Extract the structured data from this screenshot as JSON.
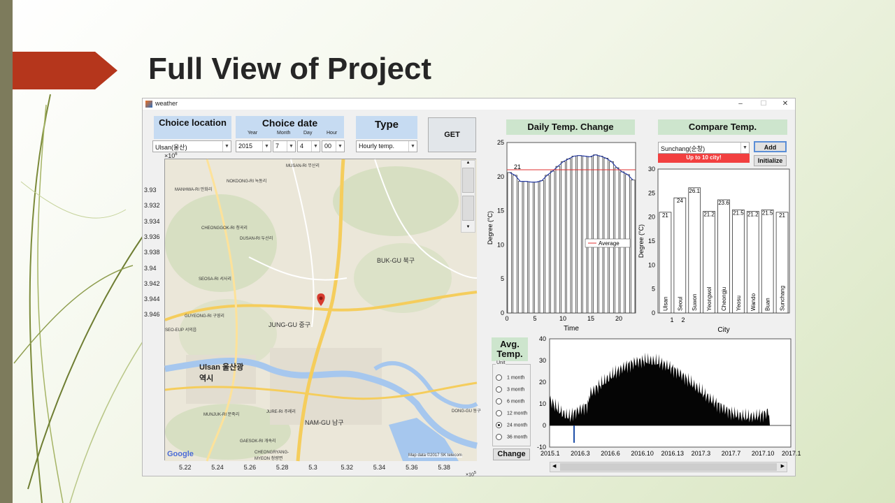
{
  "slide": {
    "title": "Full View of Project"
  },
  "window": {
    "title": "weather",
    "min_icon": "minimize-icon",
    "max_icon": "maximize-icon",
    "close_icon": "close-icon"
  },
  "location": {
    "header": "Choice location",
    "value": "Ulsan(울산)"
  },
  "date": {
    "header": "Choice date",
    "year_label": "Year",
    "month_label": "Month",
    "day_label": "Day",
    "hour_label": "Hour",
    "year": "2015",
    "month": "7",
    "day": "4",
    "hour": "00"
  },
  "type": {
    "header": "Type",
    "value": "Hourly temp."
  },
  "get_button": "GET",
  "map": {
    "exp_label": "×10",
    "exp_sup": "6",
    "y_ticks": [
      "3.93",
      "3.932",
      "3.934",
      "3.936",
      "3.938",
      "3.94",
      "3.942",
      "3.944",
      "3.946"
    ],
    "x_ticks": [
      "5.22",
      "5.24",
      "5.26",
      "5.28",
      "5.3",
      "5.32",
      "5.34",
      "5.36",
      "5.38"
    ],
    "x_exp": "×10",
    "x_exp_sup": "5",
    "labels": [
      "MUSAN-RI 무산리",
      "NOKDONG-RI 녹동리",
      "MANHWA-RI 만화리",
      "CHEONGGOK-RI 청곡리",
      "DUSAN-RI 두산리",
      "BUK-GU 북구",
      "SEOSA-RI 서사리",
      "GUYEONG-RI 구영리",
      "JUNG-GU 중구",
      "Ulsan 울산광역시",
      "SEO-EUP 서의읍",
      "MUNJUK-RI 문죽리",
      "GAESOK-RI 개속리",
      "NAM-GU 남구",
      "DONG-GU 동구",
      "JURE-RI 주례리",
      "CHEONGRYANG-MYEON 청량면"
    ],
    "google": "Google",
    "attribution": "Map data ©2017 SK telecom"
  },
  "daily": {
    "header": "Daily Temp. Change",
    "xlabel": "Time",
    "ylabel": "Degree (°C)",
    "legend": "Average",
    "avg_label": "21"
  },
  "compare": {
    "header": "Compare Temp.",
    "city_value": "Sunchang(순창)",
    "add_button": "Add",
    "warning": "Up to 10 city!",
    "init_button": "Initialize",
    "xlabel": "City",
    "ylabel": "Degree (°C)"
  },
  "avg": {
    "header_line1": "Avg.",
    "header_line2": "Temp.",
    "unit_label": "Unit",
    "options": [
      "1 month",
      "3 month",
      "6 month",
      "12 month",
      "24 month",
      "36 month"
    ],
    "selected": "24 month",
    "change_button": "Change",
    "x_ticks": [
      "2015.1",
      "2016.3",
      "2016.6",
      "2016.10",
      "2016.13",
      "2017.3",
      "2017.7",
      "2017.10",
      "2017.1"
    ]
  },
  "chart_data": [
    {
      "type": "bar",
      "title": "Daily Temp. Change",
      "xlabel": "Time",
      "ylabel": "Degree (°C)",
      "xlim": [
        0,
        23
      ],
      "ylim": [
        0,
        25
      ],
      "x_ticks": [
        0,
        5,
        10,
        15,
        20
      ],
      "y_ticks": [
        0,
        5,
        10,
        15,
        20,
        25
      ],
      "values": [
        20.6,
        20.2,
        19.3,
        19.3,
        19.2,
        19.2,
        19.4,
        20.2,
        20.8,
        21.5,
        22.2,
        22.6,
        23.0,
        23.1,
        23.0,
        22.9,
        23.2,
        23.0,
        22.7,
        22.2,
        21.3,
        20.7,
        20.3,
        19.5
      ],
      "series": [
        {
          "name": "Average",
          "values": [
            21
          ]
        }
      ]
    },
    {
      "type": "bar",
      "xlabel": "City",
      "ylabel": "Degree (°C)",
      "ylim": [
        0,
        30
      ],
      "y_ticks": [
        0,
        5,
        10,
        15,
        20,
        25,
        30
      ],
      "x_ticks": [
        "1",
        "2"
      ],
      "categories": [
        "Ulsan",
        "Seoul",
        "Suwon",
        "Yeongwol",
        "Cheongju",
        "Yeosu",
        "Wando",
        "Buan",
        "Sunchang"
      ],
      "values": [
        21,
        24,
        26.1,
        21.2,
        23.6,
        21.5,
        21.2,
        21.5,
        21
      ],
      "data_labels": [
        "21",
        "24",
        "26.1",
        "21.2",
        "23.6",
        "21.5",
        "21.2",
        "21.5",
        "21"
      ]
    },
    {
      "type": "bar",
      "title": "Avg. Temp.",
      "ylim": [
        -10,
        40
      ],
      "y_ticks": [
        -10,
        0,
        10,
        20,
        30,
        40
      ],
      "x_ticks": [
        "2015.1",
        "2016.3",
        "2016.6",
        "2016.10",
        "2016.13",
        "2017.3",
        "2017.7",
        "2017.10",
        "2017.1"
      ]
    }
  ]
}
